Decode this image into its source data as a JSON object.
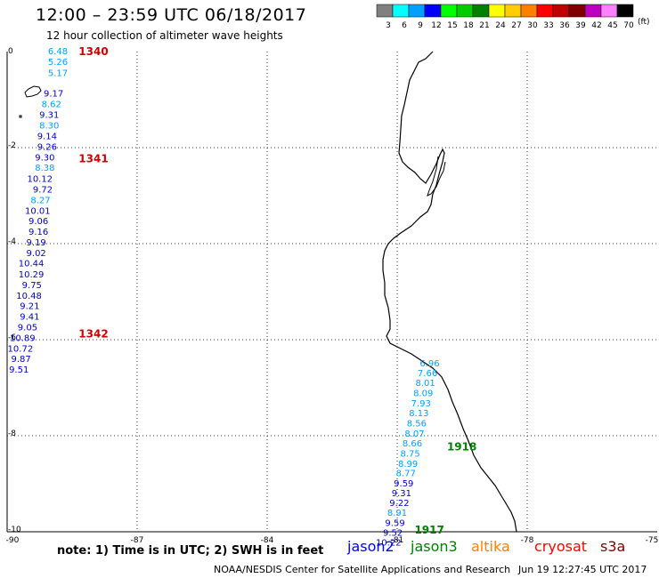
{
  "header": {
    "title": "12:00 – 23:59 UTC 06/18/2017",
    "subtitle": "12 hour collection of altimeter wave heights"
  },
  "legend": {
    "unit": "(ft)",
    "bins": [
      {
        "label": "3",
        "color": "#808080"
      },
      {
        "label": "6",
        "color": "#00ffff"
      },
      {
        "label": "9",
        "color": "#00a0ff"
      },
      {
        "label": "12",
        "color": "#0000ff"
      },
      {
        "label": "15",
        "color": "#00ff00"
      },
      {
        "label": "18",
        "color": "#00cc00"
      },
      {
        "label": "21",
        "color": "#008000"
      },
      {
        "label": "24",
        "color": "#ffff00"
      },
      {
        "label": "27",
        "color": "#ffcc00"
      },
      {
        "label": "30",
        "color": "#ff8000"
      },
      {
        "label": "33",
        "color": "#ff0000"
      },
      {
        "label": "36",
        "color": "#c00000"
      },
      {
        "label": "39",
        "color": "#800000"
      },
      {
        "label": "42",
        "color": "#c000c0"
      },
      {
        "label": "45",
        "color": "#ff80ff"
      },
      {
        "label": "70",
        "color": "#000000"
      }
    ]
  },
  "axes": {
    "x_ticks": [
      "-90",
      "-87",
      "-84",
      "-81",
      "-78",
      "-75"
    ],
    "y_ticks": [
      "0",
      "-2",
      "-4",
      "-6",
      "-8",
      "-10"
    ],
    "lon_range": [
      -90,
      -75
    ],
    "lat_range": [
      -10,
      0
    ]
  },
  "track_1340_1342": {
    "labels": [
      {
        "text": "1340",
        "lat": -0.02
      },
      {
        "text": "1341",
        "lat": -2.25
      },
      {
        "text": "1342",
        "lat": -5.9
      }
    ],
    "points": [
      {
        "v": "6.48",
        "lon": -88.6,
        "lat": 0.0,
        "c": "#00a0ff"
      },
      {
        "v": "5.26",
        "lon": -88.6,
        "lat": -0.22,
        "c": "#00a0ff"
      },
      {
        "v": "5.17",
        "lon": -88.6,
        "lat": -0.45,
        "c": "#00a0ff"
      },
      {
        "v": "9.17",
        "lon": -88.7,
        "lat": -0.88,
        "c": "#0000cc"
      },
      {
        "v": "8.62",
        "lon": -88.75,
        "lat": -1.1,
        "c": "#00a0ff"
      },
      {
        "v": "9.31",
        "lon": -88.8,
        "lat": -1.32,
        "c": "#0000cc"
      },
      {
        "v": "8.30",
        "lon": -88.8,
        "lat": -1.55,
        "c": "#00a0ff"
      },
      {
        "v": "9.14",
        "lon": -88.85,
        "lat": -1.77,
        "c": "#0000cc"
      },
      {
        "v": "9.26",
        "lon": -88.85,
        "lat": -1.99,
        "c": "#0000cc"
      },
      {
        "v": "9.30",
        "lon": -88.9,
        "lat": -2.21,
        "c": "#0000cc"
      },
      {
        "v": "8.38",
        "lon": -88.9,
        "lat": -2.43,
        "c": "#00a0ff"
      },
      {
        "v": "10.12",
        "lon": -88.95,
        "lat": -2.66,
        "c": "#0000cc"
      },
      {
        "v": "9.72",
        "lon": -88.95,
        "lat": -2.88,
        "c": "#0000cc"
      },
      {
        "v": "8.27",
        "lon": -89.0,
        "lat": -3.1,
        "c": "#00a0ff"
      },
      {
        "v": "10.01",
        "lon": -89.0,
        "lat": -3.32,
        "c": "#0000cc"
      },
      {
        "v": "9.06",
        "lon": -89.05,
        "lat": -3.54,
        "c": "#0000cc"
      },
      {
        "v": "9.16",
        "lon": -89.05,
        "lat": -3.76,
        "c": "#0000cc"
      },
      {
        "v": "9.19",
        "lon": -89.1,
        "lat": -3.98,
        "c": "#0000cc"
      },
      {
        "v": "9.02",
        "lon": -89.1,
        "lat": -4.2,
        "c": "#0000cc"
      },
      {
        "v": "10.44",
        "lon": -89.15,
        "lat": -4.42,
        "c": "#0000cc"
      },
      {
        "v": "10.29",
        "lon": -89.15,
        "lat": -4.65,
        "c": "#0000cc"
      },
      {
        "v": "9.75",
        "lon": -89.2,
        "lat": -4.87,
        "c": "#0000cc"
      },
      {
        "v": "10.48",
        "lon": -89.2,
        "lat": -5.09,
        "c": "#0000cc"
      },
      {
        "v": "9.21",
        "lon": -89.25,
        "lat": -5.31,
        "c": "#0000cc"
      },
      {
        "v": "9.41",
        "lon": -89.25,
        "lat": -5.53,
        "c": "#0000cc"
      },
      {
        "v": "9.05",
        "lon": -89.3,
        "lat": -5.75,
        "c": "#0000cc"
      },
      {
        "v": "10.89",
        "lon": -89.35,
        "lat": -5.97,
        "c": "#0000cc"
      },
      {
        "v": "10.72",
        "lon": -89.4,
        "lat": -6.19,
        "c": "#0000cc"
      },
      {
        "v": "9.87",
        "lon": -89.45,
        "lat": -6.41,
        "c": "#0000cc"
      },
      {
        "v": "9.51",
        "lon": -89.5,
        "lat": -6.63,
        "c": "#0000cc"
      }
    ]
  },
  "track_1917_1918": {
    "labels": [
      {
        "text": "1918",
        "lon": -79.85,
        "lat": -8.25
      },
      {
        "text": "1917",
        "lon": -80.6,
        "lat": -9.98
      }
    ],
    "points": [
      {
        "v": "6.96",
        "lon": -80.25,
        "lat": -6.5,
        "c": "#00a0ff"
      },
      {
        "v": "7.66",
        "lon": -80.3,
        "lat": -6.7,
        "c": "#00a0ff"
      },
      {
        "v": "8.01",
        "lon": -80.35,
        "lat": -6.91,
        "c": "#00a0ff"
      },
      {
        "v": "8.09",
        "lon": -80.4,
        "lat": -7.12,
        "c": "#00a0ff"
      },
      {
        "v": "7.93",
        "lon": -80.45,
        "lat": -7.33,
        "c": "#00a0ff"
      },
      {
        "v": "8.13",
        "lon": -80.5,
        "lat": -7.54,
        "c": "#00a0ff"
      },
      {
        "v": "8.56",
        "lon": -80.55,
        "lat": -7.75,
        "c": "#00a0ff"
      },
      {
        "v": "8.07",
        "lon": -80.6,
        "lat": -7.96,
        "c": "#00a0ff"
      },
      {
        "v": "8.66",
        "lon": -80.65,
        "lat": -8.17,
        "c": "#00a0ff"
      },
      {
        "v": "8.75",
        "lon": -80.7,
        "lat": -8.38,
        "c": "#00a0ff"
      },
      {
        "v": "8.99",
        "lon": -80.75,
        "lat": -8.59,
        "c": "#00a0ff"
      },
      {
        "v": "8.77",
        "lon": -80.8,
        "lat": -8.79,
        "c": "#00a0ff"
      },
      {
        "v": "9.59",
        "lon": -80.85,
        "lat": -9.0,
        "c": "#0000cc"
      },
      {
        "v": "9.31",
        "lon": -80.9,
        "lat": -9.2,
        "c": "#0000cc"
      },
      {
        "v": "9.22",
        "lon": -80.95,
        "lat": -9.41,
        "c": "#0000cc"
      },
      {
        "v": "8.91",
        "lon": -81.0,
        "lat": -9.61,
        "c": "#00a0ff"
      },
      {
        "v": "9.59",
        "lon": -81.05,
        "lat": -9.82,
        "c": "#0000cc"
      },
      {
        "v": "9.52",
        "lon": -81.1,
        "lat": -10.03,
        "c": "#0000cc"
      },
      {
        "v": "10.22",
        "lon": -81.2,
        "lat": -10.23,
        "c": "#0000cc"
      }
    ]
  },
  "footer": {
    "note": "note: 1) Time is in UTC; 2) SWH is in feet",
    "satellites": [
      {
        "name": "jason2",
        "color": "#0000ff"
      },
      {
        "name": "jason3",
        "color": "#008000"
      },
      {
        "name": "altika",
        "color": "#ff8000"
      },
      {
        "name": "cryosat",
        "color": "#ff0000"
      },
      {
        "name": "s3a",
        "color": "#800000"
      }
    ],
    "credit": "NOAA/NESDIS Center for Satellite Applications and Research",
    "timestamp": "Jun 19 12:27:45 UTC 2017"
  }
}
